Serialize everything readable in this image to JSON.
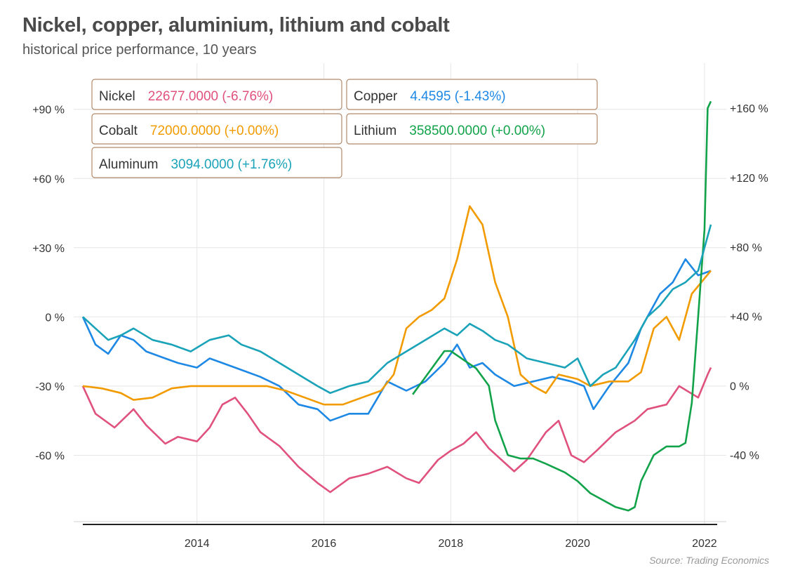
{
  "chart_data": {
    "type": "line",
    "title": "Nickel, copper, aluminium, lithium and cobalt",
    "subtitle": "historical price performance, 10 years",
    "source": "Source: Trading Economics",
    "x_ticks": [
      "2014",
      "2016",
      "2018",
      "2020",
      "2022"
    ],
    "y_left_ticks": [
      "+90 %",
      "+60 %",
      "+30 %",
      "0 %",
      "-30 %",
      "-60 %"
    ],
    "y_right_ticks": [
      "+160 %",
      "+120 %",
      "+80 %",
      "+40 %",
      "0 %",
      "-40 %"
    ],
    "y_left_range": [
      -90,
      110
    ],
    "y_right_range": [
      -80,
      186
    ],
    "x_range": [
      2012.2,
      2022.2
    ],
    "grid": true,
    "legend": [
      {
        "name": "Nickel",
        "value": "22677.0000 (-6.76%)",
        "color": "#e0517e"
      },
      {
        "name": "Copper",
        "value": "4.4595 (-1.43%)",
        "color": "#1e88e5"
      },
      {
        "name": "Cobalt",
        "value": "72000.0000 (+0.00%)",
        "color": "#f29b00"
      },
      {
        "name": "Lithium",
        "value": "358500.0000 (+0.00%)",
        "color": "#12a34a"
      },
      {
        "name": "Aluminum",
        "value": "3094.0000 (+1.76%)",
        "color": "#1aa3b8"
      }
    ],
    "series": [
      {
        "name": "Nickel",
        "axis": "left",
        "color": "#e0517e",
        "x": [
          2012.2,
          2012.4,
          2012.7,
          2013.0,
          2013.2,
          2013.5,
          2013.7,
          2014.0,
          2014.2,
          2014.4,
          2014.6,
          2014.8,
          2015.0,
          2015.3,
          2015.6,
          2015.9,
          2016.1,
          2016.4,
          2016.7,
          2017.0,
          2017.3,
          2017.5,
          2017.8,
          2018.0,
          2018.2,
          2018.4,
          2018.6,
          2018.8,
          2019.0,
          2019.2,
          2019.5,
          2019.7,
          2019.9,
          2020.1,
          2020.3,
          2020.6,
          2020.9,
          2021.1,
          2021.4,
          2021.6,
          2021.9,
          2022.05,
          2022.1
        ],
        "y": [
          -30,
          -42,
          -48,
          -40,
          -47,
          -55,
          -52,
          -54,
          -48,
          -38,
          -35,
          -42,
          -50,
          -56,
          -65,
          -72,
          -76,
          -70,
          -68,
          -65,
          -70,
          -72,
          -62,
          -58,
          -55,
          -50,
          -57,
          -62,
          -67,
          -62,
          -50,
          -45,
          -60,
          -63,
          -58,
          -50,
          -45,
          -40,
          -38,
          -30,
          -35,
          -25,
          -22
        ]
      },
      {
        "name": "Copper",
        "axis": "left",
        "color": "#1e88e5",
        "x": [
          2012.2,
          2012.4,
          2012.6,
          2012.8,
          2013.0,
          2013.2,
          2013.5,
          2013.7,
          2014.0,
          2014.2,
          2014.4,
          2014.7,
          2015.0,
          2015.3,
          2015.6,
          2015.9,
          2016.1,
          2016.4,
          2016.7,
          2017.0,
          2017.3,
          2017.6,
          2017.9,
          2018.1,
          2018.3,
          2018.5,
          2018.7,
          2019.0,
          2019.3,
          2019.6,
          2019.9,
          2020.1,
          2020.25,
          2020.5,
          2020.8,
          2021.0,
          2021.3,
          2021.5,
          2021.7,
          2021.9,
          2022.1
        ],
        "y": [
          0,
          -12,
          -16,
          -8,
          -10,
          -15,
          -18,
          -20,
          -22,
          -18,
          -20,
          -23,
          -26,
          -30,
          -38,
          -40,
          -45,
          -42,
          -42,
          -28,
          -32,
          -28,
          -20,
          -12,
          -22,
          -20,
          -25,
          -30,
          -28,
          -26,
          -28,
          -30,
          -40,
          -30,
          -20,
          -5,
          10,
          15,
          25,
          18,
          20
        ]
      },
      {
        "name": "Cobalt",
        "axis": "left",
        "color": "#f29b00",
        "x": [
          2012.2,
          2012.5,
          2012.8,
          2013.0,
          2013.3,
          2013.6,
          2013.9,
          2014.2,
          2014.5,
          2014.8,
          2015.1,
          2015.4,
          2015.7,
          2016.0,
          2016.3,
          2016.6,
          2016.9,
          2017.1,
          2017.3,
          2017.5,
          2017.7,
          2017.9,
          2018.1,
          2018.3,
          2018.5,
          2018.7,
          2018.9,
          2019.1,
          2019.3,
          2019.5,
          2019.7,
          2020.0,
          2020.2,
          2020.5,
          2020.8,
          2021.0,
          2021.2,
          2021.4,
          2021.6,
          2021.8,
          2022.1
        ],
        "y": [
          -30,
          -31,
          -33,
          -36,
          -35,
          -31,
          -30,
          -30,
          -30,
          -30,
          -30,
          -32,
          -35,
          -38,
          -38,
          -35,
          -32,
          -25,
          -5,
          0,
          3,
          8,
          25,
          48,
          40,
          15,
          0,
          -25,
          -30,
          -33,
          -25,
          -27,
          -30,
          -28,
          -28,
          -24,
          -5,
          0,
          -10,
          10,
          20
        ]
      },
      {
        "name": "Lithium",
        "axis": "right",
        "color": "#12a34a",
        "x": [
          2017.4,
          2017.6,
          2017.8,
          2017.9,
          2018.0,
          2018.2,
          2018.4,
          2018.6,
          2018.7,
          2018.9,
          2019.1,
          2019.3,
          2019.5,
          2019.8,
          2020.0,
          2020.2,
          2020.4,
          2020.6,
          2020.8,
          2020.9,
          2021.0,
          2021.2,
          2021.4,
          2021.5,
          2021.6,
          2021.7,
          2021.8,
          2021.9,
          2022.0,
          2022.05,
          2022.1
        ],
        "y": [
          -5,
          5,
          15,
          20,
          20,
          15,
          10,
          0,
          -20,
          -40,
          -42,
          -42,
          -45,
          -50,
          -55,
          -62,
          -66,
          -70,
          -72,
          -70,
          -55,
          -40,
          -35,
          -35,
          -35,
          -33,
          -10,
          40,
          90,
          160,
          164
        ]
      },
      {
        "name": "Aluminum",
        "axis": "left",
        "color": "#1aa3b8",
        "x": [
          2012.2,
          2012.4,
          2012.6,
          2012.8,
          2013.0,
          2013.3,
          2013.6,
          2013.9,
          2014.2,
          2014.5,
          2014.7,
          2015.0,
          2015.3,
          2015.6,
          2015.9,
          2016.1,
          2016.4,
          2016.7,
          2017.0,
          2017.3,
          2017.6,
          2017.9,
          2018.1,
          2018.3,
          2018.5,
          2018.7,
          2018.9,
          2019.2,
          2019.5,
          2019.8,
          2020.0,
          2020.2,
          2020.4,
          2020.6,
          2020.9,
          2021.1,
          2021.3,
          2021.5,
          2021.7,
          2021.9,
          2022.0,
          2022.1
        ],
        "y": [
          0,
          -5,
          -10,
          -8,
          -5,
          -10,
          -12,
          -15,
          -10,
          -8,
          -12,
          -15,
          -20,
          -25,
          -30,
          -33,
          -30,
          -28,
          -20,
          -15,
          -10,
          -5,
          -8,
          -3,
          -6,
          -10,
          -12,
          -18,
          -20,
          -22,
          -18,
          -30,
          -25,
          -22,
          -10,
          0,
          5,
          12,
          15,
          20,
          30,
          40
        ]
      }
    ]
  }
}
